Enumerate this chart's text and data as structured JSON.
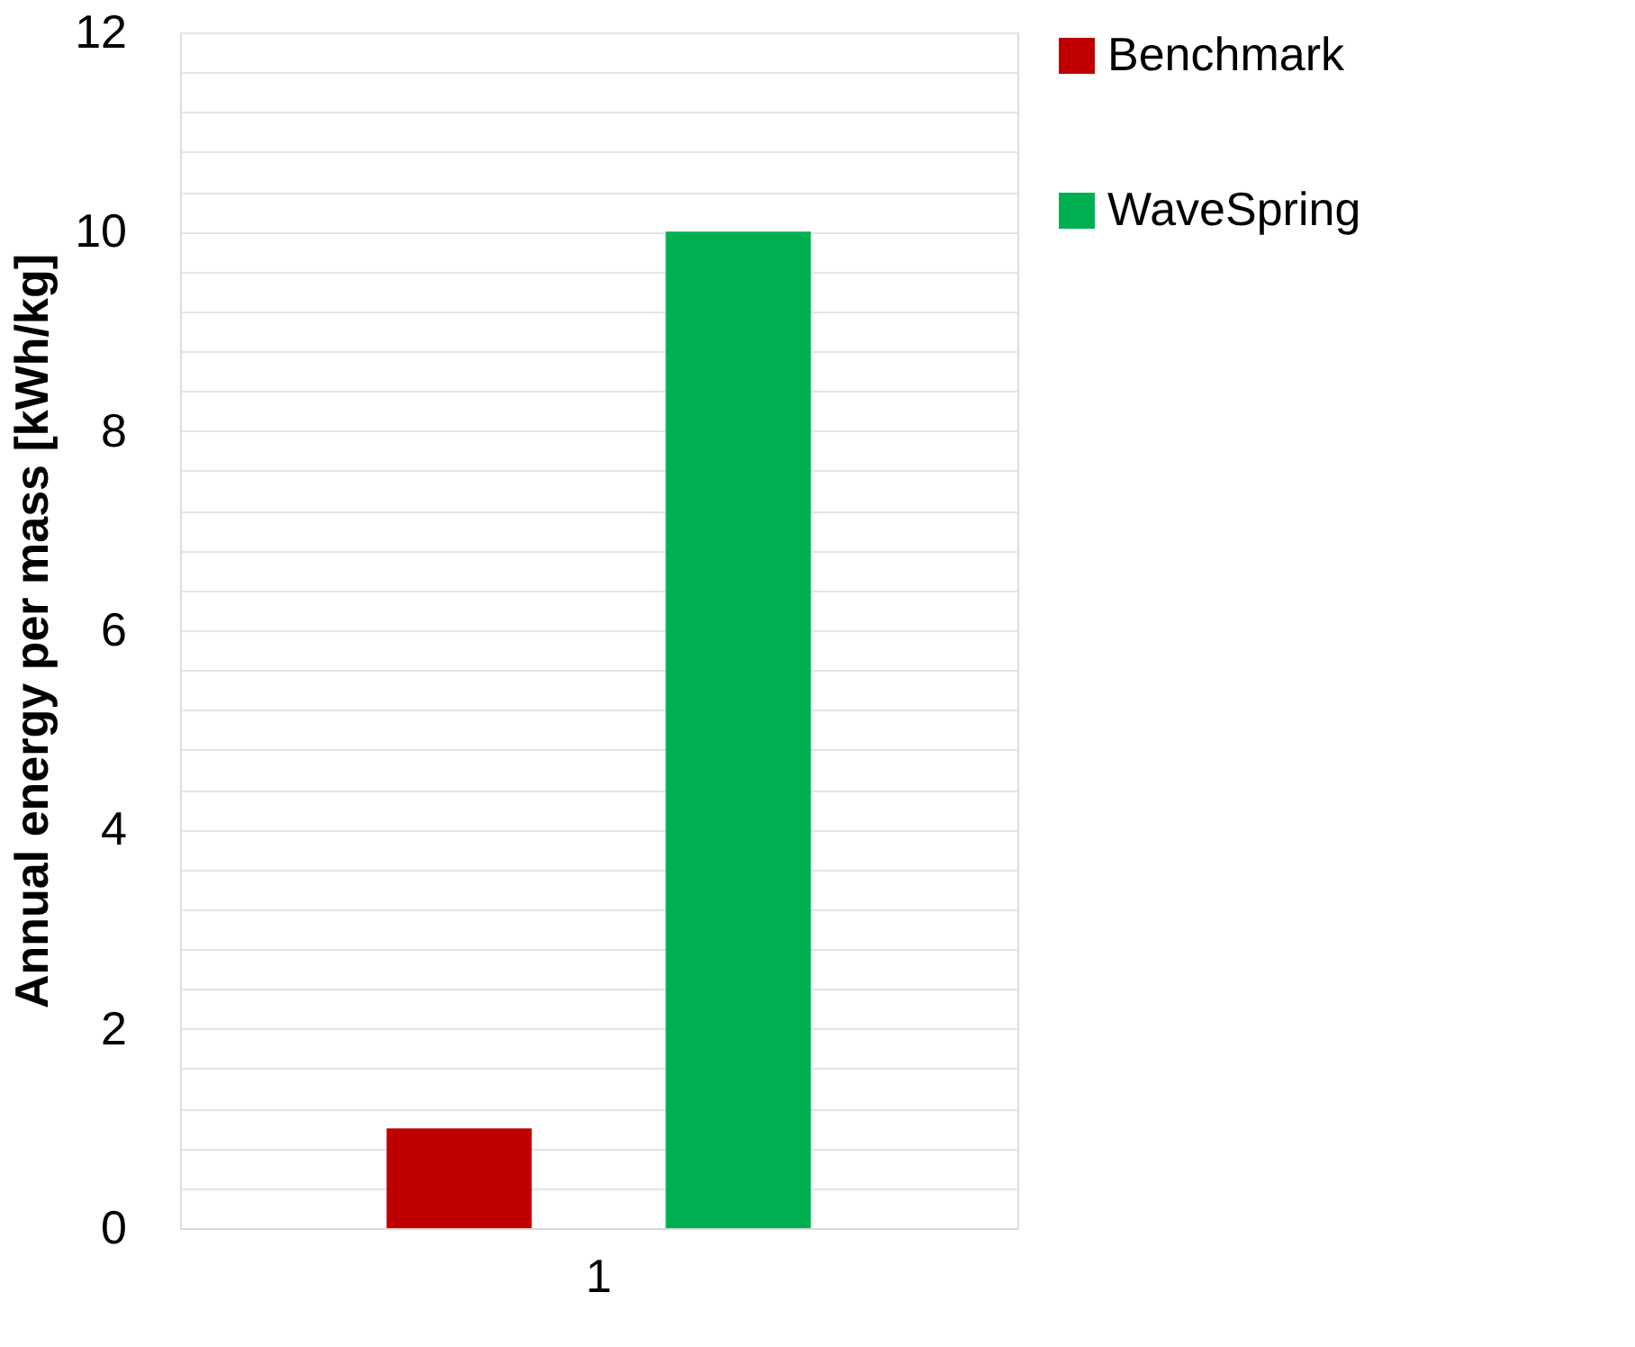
{
  "chart_data": {
    "type": "bar",
    "ylabel": "Annual energy per mass [kWh/kg]",
    "categories": [
      "1"
    ],
    "series": [
      {
        "name": "Benchmark",
        "color": "#c00000",
        "values": [
          1.0
        ]
      },
      {
        "name": "WaveSpring",
        "color": "#00b050",
        "values": [
          10.0
        ]
      }
    ],
    "ylim": [
      0,
      12
    ],
    "yticks": [
      0,
      {
        "value": 0.4,
        "label": null
      },
      {
        "value": 0.8,
        "label": null
      },
      {
        "value": 1.2,
        "label": null
      },
      {
        "value": 1.6,
        "label": null
      },
      2,
      {
        "value": 2.4,
        "label": null
      },
      {
        "value": 2.8,
        "label": null
      },
      {
        "value": 3.2,
        "label": null
      },
      {
        "value": 3.6,
        "label": null
      },
      4,
      {
        "value": 4.4,
        "label": null
      },
      {
        "value": 4.8,
        "label": null
      },
      {
        "value": 5.2,
        "label": null
      },
      {
        "value": 5.6,
        "label": null
      },
      6,
      {
        "value": 6.4,
        "label": null
      },
      {
        "value": 6.8,
        "label": null
      },
      {
        "value": 7.2,
        "label": null
      },
      {
        "value": 7.6,
        "label": null
      },
      8,
      {
        "value": 8.4,
        "label": null
      },
      {
        "value": 8.8,
        "label": null
      },
      {
        "value": 9.2,
        "label": null
      },
      {
        "value": 9.6,
        "label": null
      },
      10,
      {
        "value": 10.4,
        "label": null
      },
      {
        "value": 10.8,
        "label": null
      },
      {
        "value": 11.2,
        "label": null
      },
      {
        "value": 11.6,
        "label": null
      },
      12
    ],
    "grid": "y",
    "legend": "right"
  }
}
